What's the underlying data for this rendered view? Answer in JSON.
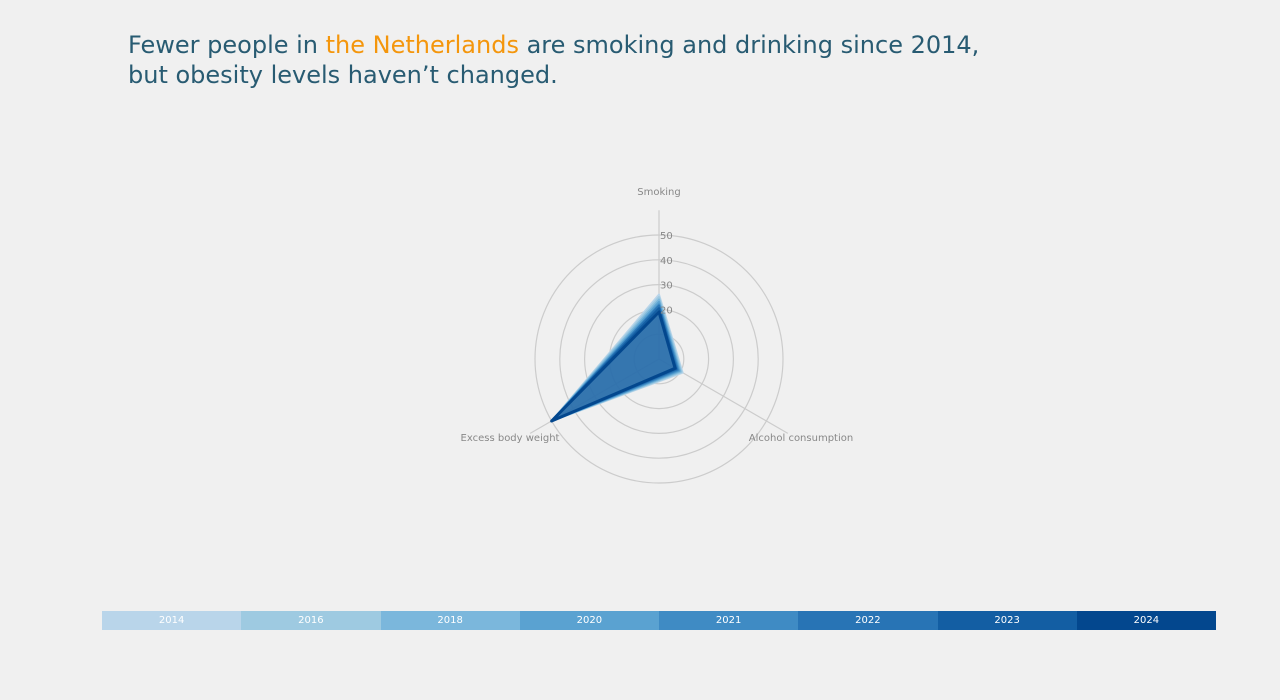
{
  "title": {
    "before": "Fewer people in ",
    "highlight": "the Netherlands",
    "after_line1": " are smoking and drinking since 2014,",
    "line2": "but obesity levels haven’t changed."
  },
  "colors": {
    "title": "#285b72",
    "highlight": "#f4960c",
    "grid": "#cccccc",
    "axis_label": "#888888"
  },
  "chart_data": {
    "type": "radar",
    "axes": [
      "Smoking",
      "Alcohol consumption",
      "Excess body weight"
    ],
    "r_ticks": [
      10,
      20,
      30,
      40,
      50
    ],
    "r_tick_labels": [
      "20",
      "30",
      "40",
      "50"
    ],
    "rmax": 50,
    "series": [
      {
        "name": "2014",
        "color": "#b9d5ea",
        "values": [
          26,
          11,
          50
        ]
      },
      {
        "name": "2016",
        "color": "#9ecae1",
        "values": [
          25,
          10.5,
          50
        ]
      },
      {
        "name": "2018",
        "color": "#7bb7dc",
        "values": [
          24,
          10,
          50
        ]
      },
      {
        "name": "2020",
        "color": "#5aa2d1",
        "values": [
          23,
          9.5,
          50
        ]
      },
      {
        "name": "2021",
        "color": "#3f8bc4",
        "values": [
          22,
          9,
          50
        ]
      },
      {
        "name": "2022",
        "color": "#2874b5",
        "values": [
          21.5,
          8.5,
          50
        ]
      },
      {
        "name": "2023",
        "color": "#135ea3",
        "values": [
          20.5,
          8,
          50
        ]
      },
      {
        "name": "2024",
        "color": "#03478e",
        "values": [
          19,
          7.5,
          50
        ]
      }
    ]
  }
}
